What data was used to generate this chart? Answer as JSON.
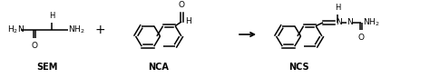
{
  "figsize": [
    4.74,
    0.86
  ],
  "dpi": 100,
  "bg_color": "#ffffff",
  "sem_label": "SEM",
  "nca_label": "NCA",
  "ncs_label": "NCS",
  "text_color": "#000000",
  "lw": 1.1,
  "ring_r": 13.5
}
